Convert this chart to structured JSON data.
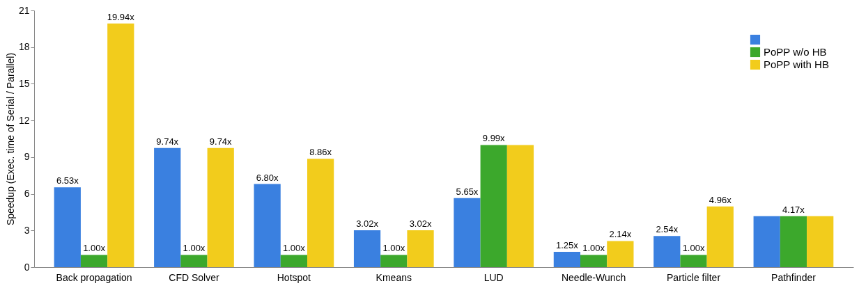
{
  "chart_data": {
    "type": "bar",
    "ylabel": "Speedup (Exec. time of Serial / Parallel)",
    "categories": [
      "Back propagation",
      "CFD Solver",
      "Hotspot",
      "Kmeans",
      "LUD",
      "Needle-Wunch",
      "Particle filter",
      "Pathfinder"
    ],
    "series": [
      {
        "color": "#3a80e0",
        "values": [
          6.53,
          9.74,
          6.8,
          3.02,
          5.65,
          1.25,
          2.54,
          4.17
        ],
        "value_labels": [
          "6.53x",
          "9.74x",
          "6.80x",
          "3.02x",
          "5.65x",
          "1.25x",
          "2.54x",
          null
        ]
      },
      {
        "name": "PoPP w/o HB",
        "color": "#3ca82c",
        "values": [
          1.0,
          1.0,
          1.0,
          1.0,
          9.99,
          1.0,
          1.0,
          4.17
        ],
        "value_labels": [
          "1.00x",
          "1.00x",
          "1.00x",
          "1.00x",
          "9.99x",
          "1.00x",
          "1.00x",
          "4.17x"
        ]
      },
      {
        "name": "PoPP with HB",
        "color": "#f2cc1c",
        "values": [
          19.94,
          9.74,
          8.86,
          3.02,
          9.99,
          2.14,
          4.96,
          4.17
        ],
        "value_labels": [
          "19.94x",
          "9.74x",
          "8.86x",
          "3.02x",
          null,
          "2.14x",
          "4.96x",
          null
        ]
      }
    ],
    "ylim": [
      0,
      21
    ],
    "yticks": [
      0,
      3,
      6,
      9,
      12,
      15,
      18,
      21
    ],
    "grid": false,
    "legend": "top right"
  }
}
